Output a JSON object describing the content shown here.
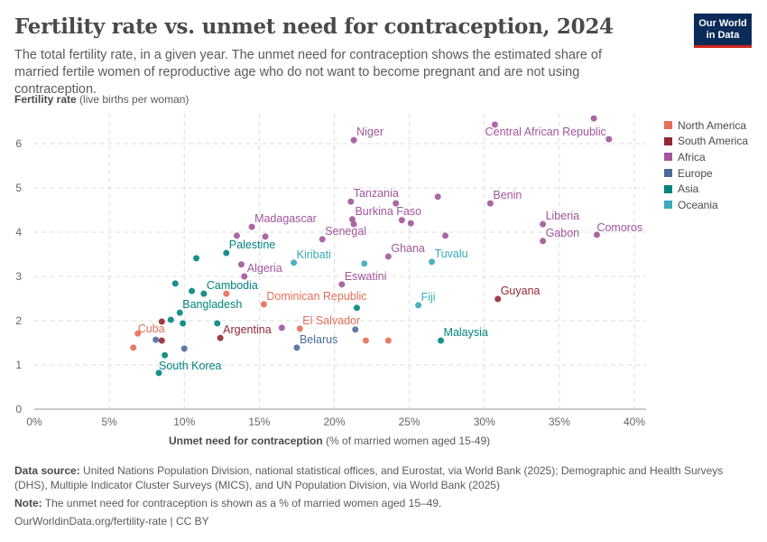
{
  "title": "Fertility rate vs. unmet need for contraception, 2024",
  "subtitle": "The total fertility rate, in a given year. The unmet need for contraception shows the estimated share of married fertile women of reproductive age who do not want to become pregnant and are not using contraception.",
  "logo": {
    "line1": "Our World",
    "line2": "in Data"
  },
  "footer": {
    "source_label": "Data source:",
    "source": "United Nations Population Division, national statistical offices, and Eurostat, via World Bank (2025); Demographic and Health Surveys (DHS), Multiple Indicator Cluster Surveys (MICS), and UN Population Division, via World Bank (2025)",
    "note_label": "Note:",
    "note": "The unmet need for contraception is shown as a % of married women aged 15–49.",
    "url": "OurWorldinData.org/fertility-rate | CC BY"
  },
  "chart_data": {
    "type": "scatter",
    "title": "Fertility rate vs. unmet need for contraception, 2024",
    "ylabel_bold": "Fertility rate",
    "ylabel_rest": " (live births per woman)",
    "xlabel_bold": "Unmet need for contraception",
    "xlabel_rest": " (% of married women aged 15-49)",
    "xlim": [
      0,
      40
    ],
    "ylim": [
      0,
      6.6
    ],
    "xticks": [
      "0%",
      "5%",
      "10%",
      "15%",
      "20%",
      "25%",
      "30%",
      "35%",
      "40%"
    ],
    "yticks": [
      "0",
      "1",
      "2",
      "3",
      "4",
      "5",
      "6"
    ],
    "grid": true,
    "legend_position": "right",
    "series": [
      {
        "name": "North America",
        "color": "#e56e5a",
        "points": [
          [
            12.8,
            2.61,
            ""
          ],
          [
            15.3,
            2.37,
            "Dominican Republic"
          ],
          [
            6.9,
            1.71,
            "Cuba"
          ],
          [
            6.6,
            1.39,
            ""
          ],
          [
            17.7,
            1.82,
            "El Salvador"
          ],
          [
            22.1,
            1.55,
            ""
          ],
          [
            23.6,
            1.55,
            ""
          ]
        ]
      },
      {
        "name": "South America",
        "color": "#932834",
        "points": [
          [
            8.5,
            1.98,
            ""
          ],
          [
            8.5,
            1.55,
            ""
          ],
          [
            12.4,
            1.61,
            "Argentina"
          ],
          [
            30.9,
            2.49,
            "Guyana"
          ]
        ]
      },
      {
        "name": "Africa",
        "color": "#a2559c",
        "points": [
          [
            21.3,
            6.08,
            "Niger"
          ],
          [
            30.7,
            6.43,
            ""
          ],
          [
            37.3,
            6.57,
            ""
          ],
          [
            38.3,
            6.1,
            "Central African Republic"
          ],
          [
            21.1,
            4.69,
            "Tanzania"
          ],
          [
            24.1,
            4.65,
            ""
          ],
          [
            26.9,
            4.8,
            ""
          ],
          [
            30.4,
            4.65,
            "Benin"
          ],
          [
            21.2,
            4.29,
            "Burkina Faso"
          ],
          [
            21.3,
            4.18,
            ""
          ],
          [
            24.5,
            4.27,
            ""
          ],
          [
            25.1,
            4.2,
            ""
          ],
          [
            33.9,
            4.18,
            "Liberia"
          ],
          [
            33.9,
            3.8,
            "Gabon"
          ],
          [
            37.5,
            3.94,
            "Comoros"
          ],
          [
            27.4,
            3.92,
            ""
          ],
          [
            19.2,
            3.84,
            "Senegal"
          ],
          [
            23.6,
            3.45,
            "Ghana"
          ],
          [
            14.5,
            4.12,
            "Madagascar"
          ],
          [
            13.5,
            3.92,
            ""
          ],
          [
            15.4,
            3.9,
            ""
          ],
          [
            13.8,
            3.27,
            ""
          ],
          [
            14.0,
            3.0,
            "Algeria"
          ],
          [
            20.5,
            2.82,
            "Eswatini"
          ],
          [
            16.5,
            1.84,
            ""
          ]
        ]
      },
      {
        "name": "Europe",
        "color": "#4c6a9c",
        "points": [
          [
            8.1,
            1.57,
            ""
          ],
          [
            10.0,
            1.37,
            ""
          ],
          [
            17.5,
            1.39,
            "Belarus"
          ],
          [
            21.4,
            1.8,
            ""
          ]
        ]
      },
      {
        "name": "Asia",
        "color": "#00847e",
        "points": [
          [
            12.8,
            3.53,
            "Palestine"
          ],
          [
            10.8,
            3.41,
            ""
          ],
          [
            9.4,
            2.84,
            ""
          ],
          [
            10.5,
            2.67,
            ""
          ],
          [
            11.3,
            2.61,
            "Cambodia"
          ],
          [
            9.7,
            2.18,
            "Bangladesh"
          ],
          [
            9.1,
            2.02,
            ""
          ],
          [
            9.9,
            1.94,
            ""
          ],
          [
            12.2,
            1.94,
            ""
          ],
          [
            21.5,
            2.29,
            ""
          ],
          [
            8.7,
            1.22,
            ""
          ],
          [
            8.3,
            0.82,
            "South Korea"
          ],
          [
            27.1,
            1.55,
            "Malaysia"
          ]
        ]
      },
      {
        "name": "Oceania",
        "color": "#38aaba",
        "points": [
          [
            17.3,
            3.31,
            "Kiribati"
          ],
          [
            22.0,
            3.29,
            ""
          ],
          [
            26.5,
            3.33,
            "Tuvalu"
          ],
          [
            25.6,
            2.35,
            "Fiji"
          ]
        ]
      }
    ]
  }
}
